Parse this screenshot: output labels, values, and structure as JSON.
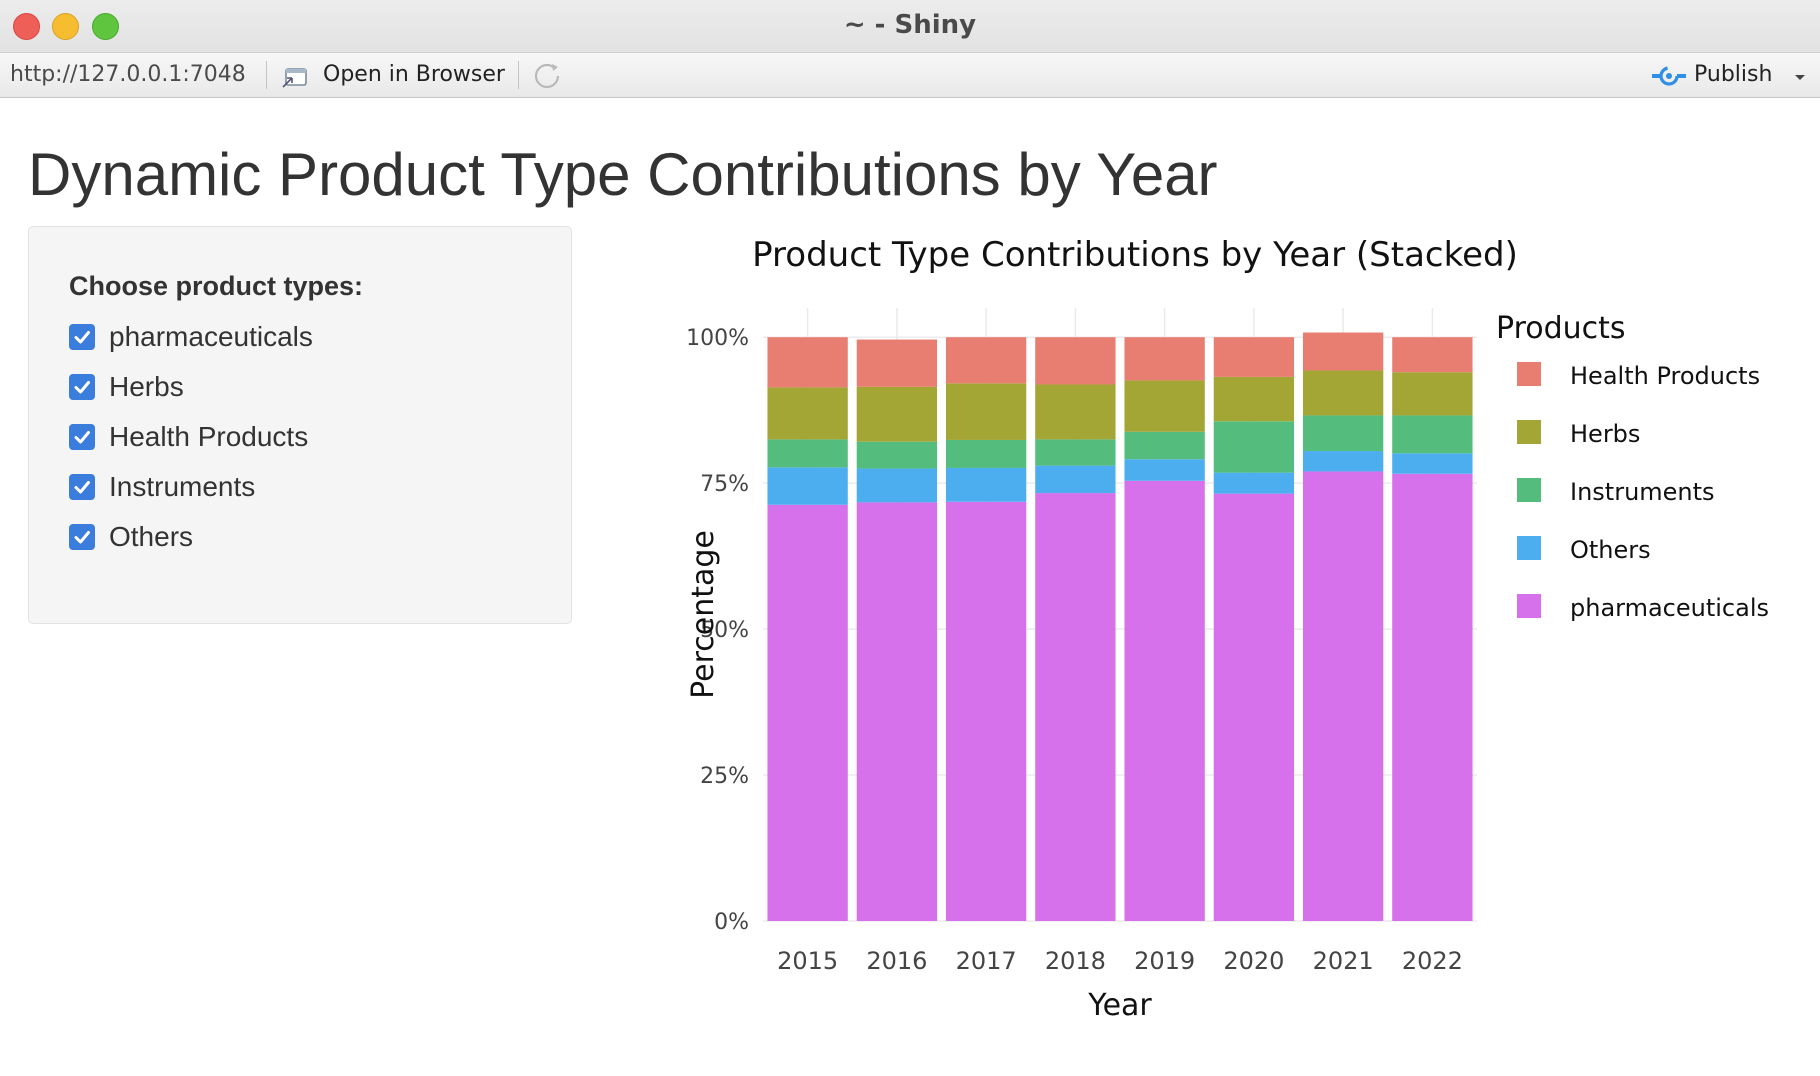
{
  "window": {
    "title": "~ - Shiny"
  },
  "toolbar": {
    "url": "http://127.0.0.1:7048",
    "open_in_browser_label": "Open in Browser",
    "publish_label": "Publish",
    "publish_icon": "publish-icon",
    "refresh_icon": "refresh-icon"
  },
  "page": {
    "title": "Dynamic Product Type Contributions by Year"
  },
  "sidebar": {
    "group_label": "Choose product types:",
    "options": [
      {
        "label": "pharmaceuticals",
        "checked": true
      },
      {
        "label": "Herbs",
        "checked": true
      },
      {
        "label": "Health Products",
        "checked": true
      },
      {
        "label": "Instruments",
        "checked": true
      },
      {
        "label": "Others",
        "checked": true
      }
    ],
    "checkbox_color": "#3b7ddd"
  },
  "chart_data": {
    "type": "bar",
    "stacked": true,
    "title": "Product Type Contributions by Year (Stacked)",
    "xlabel": "Year",
    "ylabel": "Percentage",
    "categories": [
      "2015",
      "2016",
      "2017",
      "2018",
      "2019",
      "2020",
      "2021",
      "2022"
    ],
    "y_ticks": [
      "0%",
      "25%",
      "50%",
      "75%",
      "100%"
    ],
    "ylim": [
      0,
      1.05
    ],
    "grid": true,
    "legend_title": "Products",
    "legend_position": "right",
    "series": [
      {
        "name": "pharmaceuticals",
        "color": "#d771eb",
        "values": [
          0.713,
          0.717,
          0.718,
          0.733,
          0.754,
          0.732,
          0.77,
          0.766
        ]
      },
      {
        "name": "Others",
        "color": "#4daeef",
        "values": [
          0.064,
          0.058,
          0.058,
          0.047,
          0.037,
          0.036,
          0.035,
          0.035
        ]
      },
      {
        "name": "Instruments",
        "color": "#54bd7e",
        "values": [
          0.048,
          0.046,
          0.048,
          0.045,
          0.047,
          0.088,
          0.061,
          0.065
        ]
      },
      {
        "name": "Herbs",
        "color": "#a3a534",
        "values": [
          0.089,
          0.094,
          0.097,
          0.094,
          0.088,
          0.076,
          0.077,
          0.074
        ]
      },
      {
        "name": "Health Products",
        "color": "#e87d72",
        "values": [
          0.086,
          0.081,
          0.079,
          0.081,
          0.074,
          0.068,
          0.065,
          0.06
        ]
      }
    ],
    "legend_order": [
      "Health Products",
      "Herbs",
      "Instruments",
      "Others",
      "pharmaceuticals"
    ]
  }
}
